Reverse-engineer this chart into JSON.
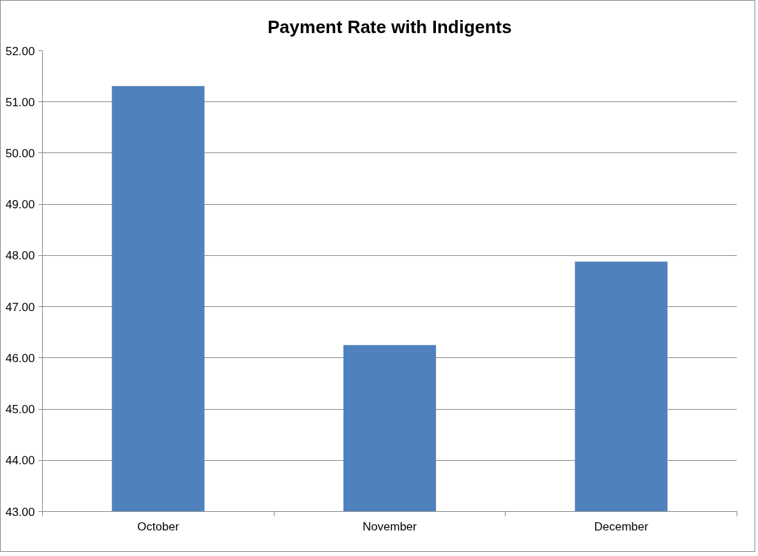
{
  "chart_data": {
    "type": "bar",
    "title": "Payment Rate with Indigents",
    "categories": [
      "October",
      "November",
      "December"
    ],
    "values": [
      51.31,
      46.25,
      47.88
    ],
    "color": "#4f81bd",
    "ylim": [
      43,
      52
    ],
    "yticks": [
      {
        "value": 43,
        "label": "43.00"
      },
      {
        "value": 44,
        "label": "44.00"
      },
      {
        "value": 45,
        "label": "45.00"
      },
      {
        "value": 46,
        "label": "46.00"
      },
      {
        "value": 47,
        "label": "47.00"
      },
      {
        "value": 48,
        "label": "48.00"
      },
      {
        "value": 49,
        "label": "49.00"
      },
      {
        "value": 50,
        "label": "50.00"
      },
      {
        "value": 51,
        "label": "51.00"
      },
      {
        "value": 52,
        "label": "52.00"
      }
    ],
    "grid": "y"
  }
}
